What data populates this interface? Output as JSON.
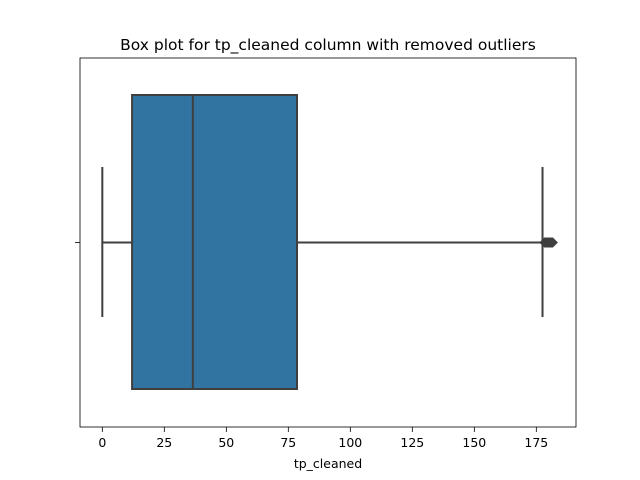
{
  "chart_data": {
    "type": "box",
    "title": "Box plot for tp_cleaned column with removed outliers",
    "xlabel": "tp_cleaned",
    "ylabel": "",
    "xlim": [
      -9,
      191
    ],
    "xticks": [
      0,
      25,
      50,
      75,
      100,
      125,
      150,
      175
    ],
    "grid": false,
    "orientation": "horizontal",
    "box": {
      "whisker_low": 0,
      "q1": 12,
      "median": 36.5,
      "q3": 78.5,
      "whisker_high": 177.5,
      "outliers": [
        178.3,
        178.8,
        179.2,
        179.6,
        180.0,
        180.4,
        180.8,
        181.2,
        181.6
      ]
    },
    "colors": {
      "box_fill": "#3274a1",
      "line": "#3f3f3f",
      "outlier": "#3f3f3f"
    }
  }
}
